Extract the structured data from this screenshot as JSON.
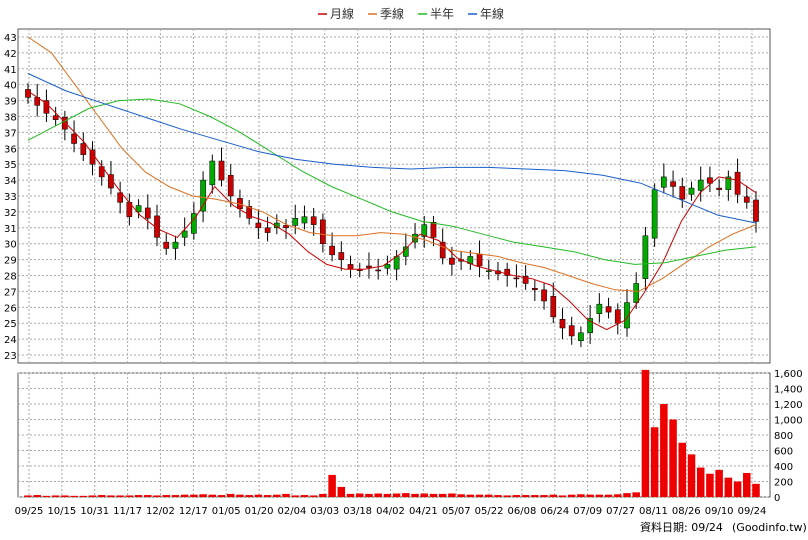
{
  "legend": [
    {
      "label": "月線",
      "color": "#cc0000"
    },
    {
      "label": "季線",
      "color": "#e07020"
    },
    {
      "label": "半年",
      "color": "#22bb22"
    },
    {
      "label": "年線",
      "color": "#1a5fcc"
    }
  ],
  "footer": {
    "date_label": "資料日期: 09/24",
    "source": "(Goodinfo.tw)"
  },
  "colors": {
    "up": "#00aa00",
    "down": "#cc0000",
    "grid": "#aaaaaa",
    "volume": "#ee0000"
  },
  "chart_data": {
    "type": "candlestick",
    "x_tick_labels": [
      "09/25",
      "10/15",
      "10/31",
      "11/17",
      "12/02",
      "12/17",
      "01/05",
      "01/20",
      "02/04",
      "03/03",
      "03/18",
      "04/02",
      "04/21",
      "05/07",
      "05/22",
      "06/08",
      "06/24",
      "07/09",
      "07/27",
      "08/11",
      "08/26",
      "09/10",
      "09/24"
    ],
    "price_axis": {
      "ticks": [
        23,
        24,
        25,
        26,
        27,
        28,
        29,
        30,
        31,
        32,
        33,
        34,
        35,
        36,
        37,
        38,
        39,
        40,
        41,
        42,
        43
      ],
      "ylim": [
        22.5,
        43.5
      ]
    },
    "volume_axis": {
      "ticks": [
        "0",
        "200",
        "400",
        "600",
        "800",
        "1,000",
        "1,200",
        "1,400",
        "1,600"
      ],
      "ylim": [
        0,
        1600
      ]
    },
    "close_approx": [
      39.2,
      38.7,
      38.2,
      37.8,
      37.2,
      36.3,
      35.6,
      35.0,
      34.2,
      33.5,
      32.6,
      31.7,
      32.4,
      31.6,
      30.4,
      29.7,
      30.1,
      30.8,
      31.9,
      34.0,
      35.2,
      34.0,
      33.0,
      32.2,
      31.6,
      31.0,
      30.7,
      31.3,
      31.0,
      31.6,
      31.7,
      31.2,
      30.0,
      29.3,
      29.0,
      28.4,
      28.3,
      28.5,
      28.3,
      28.7,
      29.2,
      29.8,
      30.6,
      31.2,
      30.4,
      29.1,
      28.7,
      28.9,
      29.2,
      28.6,
      28.3,
      28.1,
      28.0,
      27.8,
      27.5,
      27.1,
      26.4,
      25.4,
      24.7,
      24.2,
      24.4,
      25.3,
      26.2,
      25.7,
      25.0,
      26.3,
      27.5,
      30.5,
      33.4,
      34.2,
      33.6,
      32.8,
      33.5,
      34.0,
      33.8,
      33.4,
      34.2,
      33.1,
      32.6,
      31.4
    ],
    "moving_averages": [
      {
        "name": "月線",
        "values": [
          39.6,
          38.8,
          37.6,
          36.4,
          34.8,
          33.2,
          31.8,
          30.9,
          30.4,
          31.7,
          33.6,
          32.4,
          31.7,
          31.3,
          30.6,
          29.5,
          28.7,
          28.4,
          28.4,
          28.6,
          29.4,
          30.6,
          30.2,
          29.1,
          28.6,
          28.3,
          28.0,
          27.8,
          27.4,
          26.4,
          25.2,
          24.6,
          25.2,
          26.9,
          28.8,
          31.4,
          33.2,
          34.2,
          34.0,
          33.2
        ]
      },
      {
        "name": "季線",
        "values": [
          43.0,
          42.0,
          40.0,
          38.0,
          36.0,
          34.5,
          33.6,
          33.0,
          32.8,
          32.5,
          32.0,
          31.2,
          30.7,
          30.5,
          30.5,
          30.7,
          30.6,
          30.2,
          29.6,
          29.4,
          29.2,
          28.8,
          28.5,
          28.0,
          27.5,
          27.1,
          27.0,
          27.8,
          28.8,
          29.8,
          30.6,
          31.2
        ]
      },
      {
        "name": "半年",
        "values": [
          36.5,
          37.5,
          38.5,
          39.0,
          39.1,
          38.8,
          38.0,
          37.0,
          35.8,
          34.6,
          33.6,
          32.8,
          32.0,
          31.4,
          31.1,
          30.6,
          30.1,
          29.8,
          29.5,
          29.0,
          28.7,
          28.8,
          29.2,
          29.6,
          29.8
        ]
      },
      {
        "name": "年線",
        "values": [
          40.7,
          39.6,
          38.8,
          38.0,
          37.2,
          36.5,
          35.8,
          35.3,
          35.0,
          34.8,
          34.7,
          34.8,
          34.8,
          34.7,
          34.6,
          34.3,
          33.8,
          32.8,
          31.8,
          31.3
        ]
      }
    ],
    "volume_approx": [
      20,
      25,
      15,
      20,
      20,
      15,
      15,
      20,
      25,
      20,
      20,
      20,
      25,
      25,
      20,
      25,
      25,
      30,
      30,
      35,
      30,
      25,
      40,
      30,
      25,
      30,
      25,
      30,
      40,
      20,
      25,
      20,
      40,
      285,
      130,
      40,
      45,
      40,
      45,
      40,
      45,
      50,
      40,
      45,
      40,
      40,
      45,
      35,
      30,
      30,
      30,
      25,
      20,
      25,
      25,
      25,
      25,
      30,
      20,
      30,
      35,
      30,
      30,
      30,
      35,
      50,
      60,
      1640,
      900,
      1200,
      1000,
      700,
      550,
      380,
      300,
      350,
      250,
      200,
      310,
      170
    ]
  }
}
